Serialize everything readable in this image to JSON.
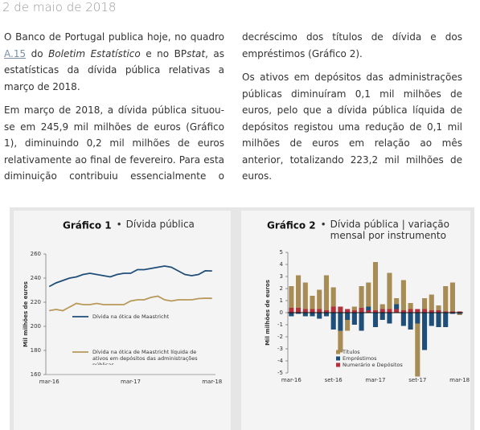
{
  "header": {
    "date": "2 de maio de 2018"
  },
  "paragraphs": [
    [
      "O Banco de Portugal publica hoje, no quadro ",
      "A.15",
      " do ",
      "Boletim Estatístico",
      " e no BP",
      "stat",
      ", as estatísticas da dívida pública relativas a março de 2018."
    ],
    [
      "Em março de 2018, a dívida pública situou-se em 245,9 mil milhões de euros (Gráfico 1), diminuindo 0,2 mil milhões de euros relativamente ao final de fevereiro. Para esta diminuição contribuiu essencialmente o decréscimo dos títulos de dívida e dos empréstimos (Gráfico 2)."
    ],
    [
      "Os ativos em depósitos das administrações públicas diminuíram 0,1 mil milhões de euros, pelo que a dívida pública líquida de depósitos registou uma redução de 0,1 mil milhões de euros em relação ao mês anterior, totalizando 223,2 mil milhões de euros."
    ]
  ],
  "chart_data": [
    {
      "type": "line",
      "title": "Gráfico 1",
      "title_separator": "•",
      "subtitle": "Dívida pública",
      "ylabel": "Mil milhões de euros",
      "categories": [
        "mar-16",
        null,
        null,
        null,
        null,
        null,
        null,
        null,
        null,
        null,
        null,
        null,
        "mar-17",
        null,
        null,
        null,
        null,
        null,
        null,
        null,
        null,
        null,
        null,
        null,
        "mar-18"
      ],
      "series": [
        {
          "name": "Dívida na ótica de Maastricht",
          "color": "#1f4e79",
          "values": [
            233,
            236,
            238,
            240,
            241,
            243,
            244,
            243,
            242,
            241,
            243,
            244,
            244,
            247,
            247,
            248,
            249,
            250,
            249,
            246,
            243,
            242,
            243,
            246.1,
            245.9
          ]
        },
        {
          "name": "Dívida na ótica de Maastricht líquida de ativos em depósitos das administrações públicas",
          "color": "#b8995a",
          "values": [
            213,
            214,
            213,
            216,
            219,
            218,
            218,
            219,
            218,
            218,
            218,
            218,
            221,
            222,
            222,
            224,
            225,
            222,
            221,
            222,
            222,
            222,
            223,
            223.3,
            223.2
          ]
        }
      ],
      "ylim": [
        160,
        260
      ],
      "yticks": [
        160,
        180,
        200,
        220,
        240,
        260
      ]
    },
    {
      "type": "bar",
      "stacked": true,
      "title": "Gráfico 2",
      "title_separator": "•",
      "subtitle": "Dívida pública | variação mensal por instrumento",
      "ylabel": "Mil milhões de euros",
      "categories": [
        "mar-16",
        null,
        null,
        null,
        null,
        null,
        "set-16",
        null,
        null,
        null,
        null,
        null,
        "mar-17",
        null,
        null,
        null,
        null,
        null,
        "set-17",
        null,
        null,
        null,
        null,
        null,
        "mar-18"
      ],
      "series": [
        {
          "name": "Títulos",
          "color": "#a88c55",
          "values": [
            1.8,
            2.7,
            2.2,
            1.1,
            1.6,
            2.9,
            1.6,
            -1.8,
            -0.9,
            0.3,
            1.8,
            2.0,
            4.0,
            0.4,
            3.0,
            0.5,
            2.5,
            0.5,
            -4.4,
            0.9,
            1.3,
            0.4,
            2.1,
            2.4,
            -0.1
          ]
        },
        {
          "name": "Empréstimos",
          "color": "#1f4e79",
          "values": [
            -0.3,
            -0.1,
            -0.3,
            -0.3,
            -0.5,
            -0.3,
            -1.4,
            -1.5,
            -0.6,
            -1.0,
            -1.5,
            0.3,
            -1.2,
            -0.6,
            -0.9,
            0.4,
            -1.1,
            -1.4,
            -0.9,
            -3.1,
            -1.1,
            -1.2,
            -1.2,
            -0.1,
            -0.1
          ]
        },
        {
          "name": "Numerário e Depósitos",
          "color": "#b0303b",
          "values": [
            0.4,
            0.4,
            0.3,
            0.3,
            0.3,
            0.2,
            0.5,
            0.5,
            0.3,
            0.2,
            0.4,
            0.2,
            0.2,
            0.3,
            0.3,
            0.3,
            0.2,
            0.3,
            0.3,
            0.3,
            0.2,
            0.2,
            0.1,
            0.1,
            0.1
          ]
        }
      ],
      "ylim": [
        -5,
        5
      ],
      "yticks": [
        -5,
        -4,
        -3,
        -2,
        -1,
        0,
        1,
        2,
        3,
        4,
        5
      ]
    }
  ]
}
